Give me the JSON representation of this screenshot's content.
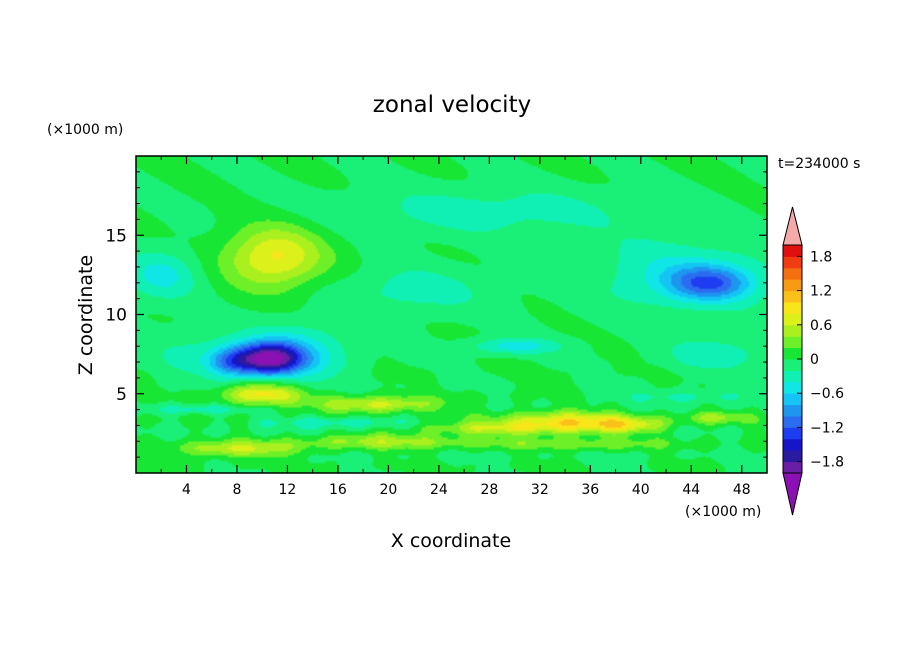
{
  "chart_data": {
    "type": "contour",
    "title": "zonal velocity",
    "time_label": "t=234000 s",
    "xlabel": "X coordinate",
    "ylabel": "Z coordinate",
    "x_unit": "(×1000 m)",
    "y_unit": "(×1000 m)",
    "xlim": [
      0,
      50
    ],
    "ylim": [
      0,
      20
    ],
    "x_ticks": [
      4,
      8,
      12,
      16,
      20,
      24,
      28,
      32,
      36,
      40,
      44,
      48
    ],
    "y_ticks": [
      5,
      10,
      15
    ],
    "colorbar": {
      "levels": [
        -2.0,
        -1.8,
        -1.6,
        -1.4,
        -1.2,
        -1.0,
        -0.8,
        -0.6,
        -0.4,
        -0.2,
        0.0,
        0.2,
        0.4,
        0.6,
        0.8,
        1.0,
        1.2,
        1.4,
        1.6,
        1.8,
        2.0
      ],
      "colors": [
        "#6a1ea6",
        "#2a1aa0",
        "#1616c8",
        "#1e3cf0",
        "#2c6cf0",
        "#1e96f0",
        "#14c4f4",
        "#10e6e6",
        "#10f0b4",
        "#1af078",
        "#18e634",
        "#6ef028",
        "#aaf01e",
        "#dcf01a",
        "#f8e61a",
        "#f8c018",
        "#f89a14",
        "#f46e12",
        "#f03c10",
        "#e01010"
      ],
      "under_color": "#8c10b4",
      "over_color": "#f4aaa8",
      "tick_values": [
        1.8,
        1.2,
        0.6,
        0,
        -0.6,
        -1.2,
        -1.8
      ],
      "tick_labels": [
        "1.8",
        "1.2",
        "0.6",
        "0",
        "−0.6",
        "−1.2",
        "−1.8"
      ]
    },
    "features": [
      {
        "x": 10.5,
        "z": 7.2,
        "sx": 2.6,
        "sz": 1.0,
        "amp": -1.9
      },
      {
        "x": 7.5,
        "z": 7.0,
        "sx": 1.8,
        "sz": 0.9,
        "amp": -0.7
      },
      {
        "x": 13.0,
        "z": 7.6,
        "sx": 4.0,
        "sz": 1.8,
        "amp": -0.5
      },
      {
        "x": 11.0,
        "z": 13.6,
        "sx": 3.8,
        "sz": 1.9,
        "amp": 0.85
      },
      {
        "x": 45.5,
        "z": 12.0,
        "sx": 3.4,
        "sz": 1.1,
        "amp": -0.95
      },
      {
        "x": 43.0,
        "z": 12.5,
        "sx": 7.0,
        "sz": 2.4,
        "amp": -0.4
      },
      {
        "x": 30.0,
        "z": 8.0,
        "sx": 3.5,
        "sz": 0.5,
        "amp": -0.5
      },
      {
        "x": 46.0,
        "z": 7.5,
        "sx": 4.0,
        "sz": 1.0,
        "amp": -0.35
      },
      {
        "x": 2.0,
        "z": 12.5,
        "sx": 3.0,
        "sz": 1.6,
        "amp": -0.45
      },
      {
        "x": 5.0,
        "z": 7.5,
        "sx": 4.0,
        "sz": 1.6,
        "amp": -0.25
      },
      {
        "x": 10.0,
        "z": 5.0,
        "sx": 3.0,
        "sz": 0.7,
        "amp": 0.9
      },
      {
        "x": 19.0,
        "z": 4.3,
        "sx": 5.0,
        "sz": 0.5,
        "amp": 0.7
      },
      {
        "x": 34.0,
        "z": 3.2,
        "sx": 5.0,
        "sz": 0.7,
        "amp": 0.85
      },
      {
        "x": 39.0,
        "z": 3.0,
        "sx": 3.0,
        "sz": 0.5,
        "amp": 0.6
      },
      {
        "x": 28.0,
        "z": 2.8,
        "sx": 6.0,
        "sz": 0.4,
        "amp": 0.5
      },
      {
        "x": 8.0,
        "z": 1.5,
        "sx": 5.0,
        "sz": 0.5,
        "amp": 0.6
      },
      {
        "x": 20.0,
        "z": 2.0,
        "sx": 7.0,
        "sz": 0.5,
        "amp": 0.45
      },
      {
        "x": 35.0,
        "z": 1.8,
        "sx": 7.0,
        "sz": 0.4,
        "amp": 0.3
      },
      {
        "x": 16.0,
        "z": 3.2,
        "sx": 6.0,
        "sz": 0.35,
        "amp": -0.4
      },
      {
        "x": 44.0,
        "z": 4.8,
        "sx": 6.0,
        "sz": 0.4,
        "amp": -0.3
      },
      {
        "x": 5.0,
        "z": 4.0,
        "sx": 4.0,
        "sz": 0.3,
        "amp": -0.3
      },
      {
        "x": 28.0,
        "z": 16.5,
        "sx": 12.0,
        "sz": 1.5,
        "amp": -0.3
      },
      {
        "x": 22.0,
        "z": 11.5,
        "sx": 6.0,
        "sz": 1.5,
        "amp": -0.3
      },
      {
        "x": 46.0,
        "z": 3.5,
        "sx": 2.5,
        "sz": 0.4,
        "amp": 0.4
      }
    ]
  }
}
